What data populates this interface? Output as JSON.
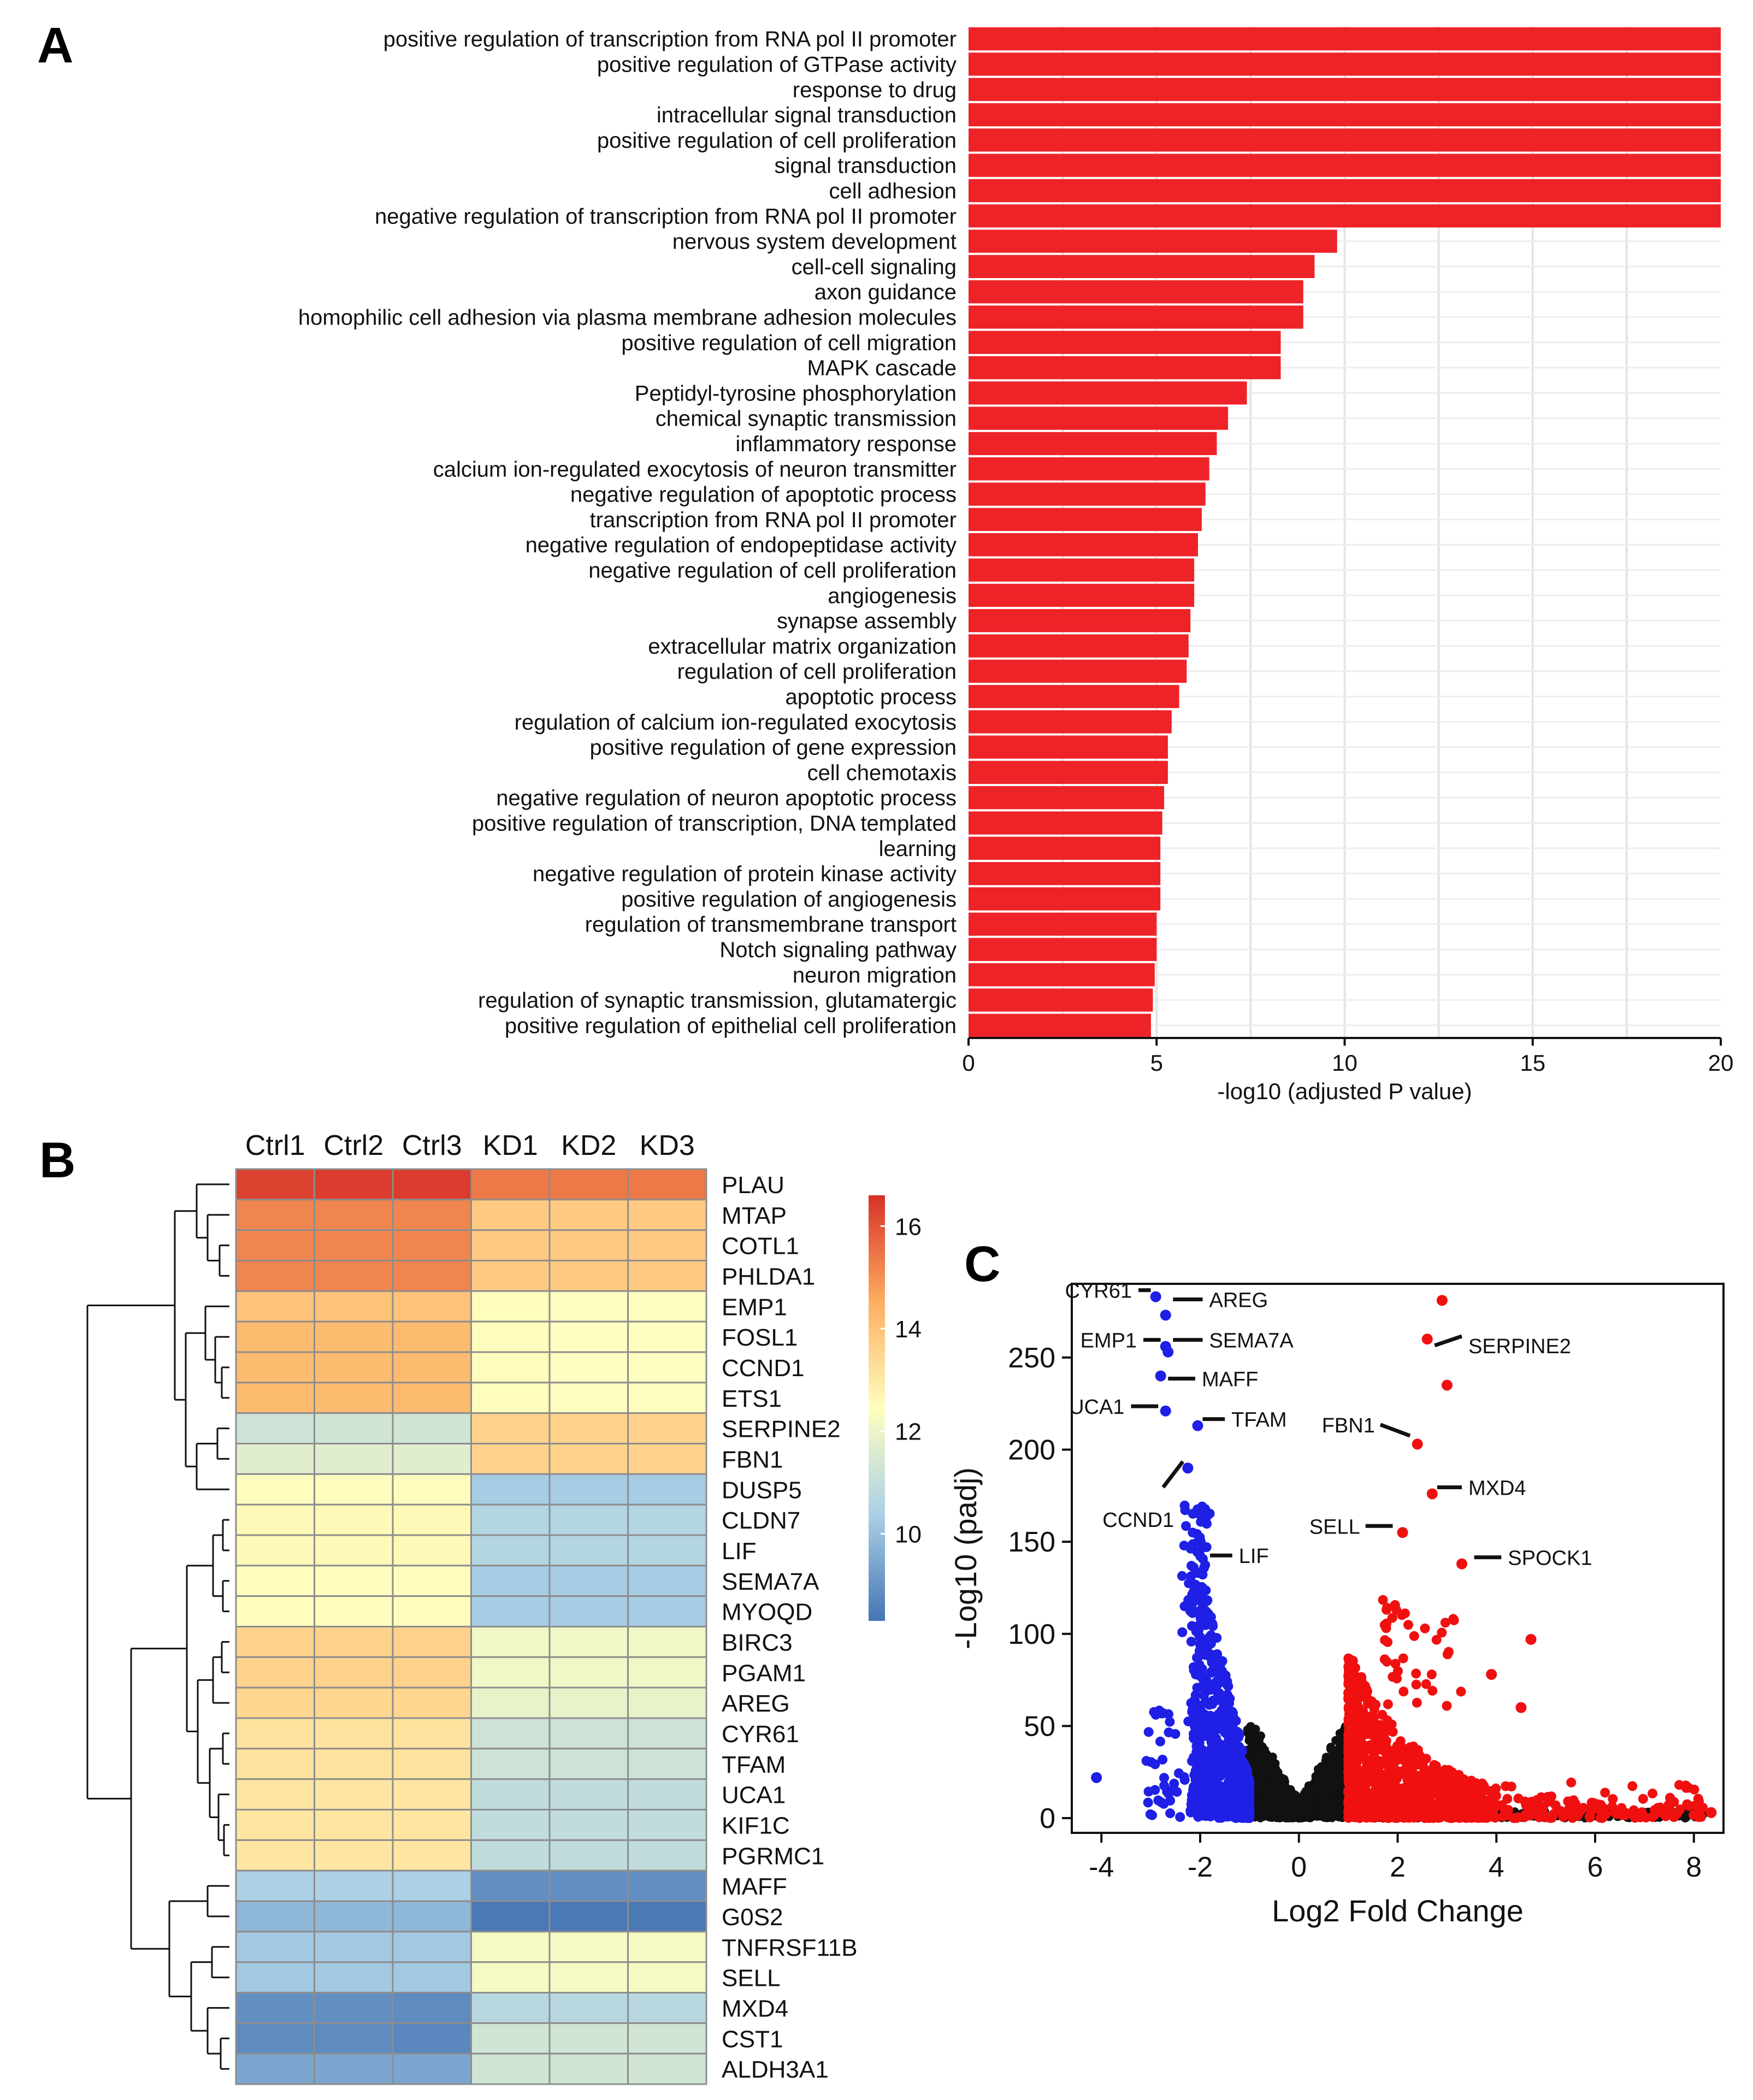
{
  "panel_labels": {
    "a": "A",
    "b": "B",
    "c": "C"
  },
  "chart_data": [
    {
      "panel": "A",
      "type": "bar",
      "orientation": "horizontal",
      "title": "",
      "xlabel": "-log10 (adjusted P value)",
      "ylabel": "",
      "xlim": [
        0,
        20
      ],
      "xticks": [
        0,
        5,
        10,
        15,
        20
      ],
      "grid": true,
      "bar_color": "#ee2328",
      "categories": [
        "positive regulation of transcription from RNA pol II promoter",
        "positive regulation of GTPase activity",
        "response to drug",
        "intracellular signal transduction",
        "positive regulation of cell proliferation",
        "signal transduction",
        "cell adhesion",
        "negative regulation of transcription from RNA pol II promoter",
        "nervous system development",
        "cell-cell signaling",
        "axon guidance",
        "homophilic cell adhesion via plasma membrane adhesion molecules",
        "positive regulation of cell migration",
        "MAPK cascade",
        "Peptidyl-tyrosine phosphorylation",
        "chemical synaptic transmission",
        "inflammatory response",
        "calcium ion-regulated exocytosis of neuron transmitter",
        "negative regulation of apoptotic process",
        "transcription from RNA pol II promoter",
        "negative regulation of endopeptidase activity",
        "negative regulation of cell proliferation",
        "angiogenesis",
        "synapse assembly",
        "extracellular matrix organization",
        "regulation of cell proliferation",
        "apoptotic process",
        "regulation of calcium ion-regulated exocytosis",
        "positive regulation of gene expression",
        "cell chemotaxis",
        "negative regulation of neuron apoptotic process",
        "positive regulation of transcription, DNA templated",
        "learning",
        "negative regulation of protein kinase activity",
        "positive regulation of angiogenesis",
        "regulation of transmembrane transport",
        "Notch signaling pathway",
        "neuron migration",
        "regulation of synaptic transmission, glutamatergic",
        "positive regulation of epithelial cell proliferation"
      ],
      "values": [
        20,
        20,
        20,
        20,
        20,
        20,
        20,
        20,
        9.8,
        9.2,
        8.9,
        8.9,
        8.3,
        8.3,
        7.4,
        6.9,
        6.6,
        6.4,
        6.3,
        6.2,
        6.1,
        6.0,
        6.0,
        5.9,
        5.85,
        5.8,
        5.6,
        5.4,
        5.3,
        5.3,
        5.2,
        5.15,
        5.1,
        5.1,
        5.1,
        5.0,
        5.0,
        4.95,
        4.9,
        4.85
      ]
    },
    {
      "panel": "B",
      "type": "heatmap",
      "columns": [
        "Ctrl1",
        "Ctrl2",
        "Ctrl3",
        "KD1",
        "KD2",
        "KD3"
      ],
      "rows": [
        "PLAU",
        "MTAP",
        "COTL1",
        "PHLDA1",
        "EMP1",
        "FOSL1",
        "CCND1",
        "ETS1",
        "SERPINE2",
        "FBN1",
        "DUSP5",
        "CLDN7",
        "LIF",
        "SEMA7A",
        "MYOQD",
        "BIRC3",
        "PGAM1",
        "AREG",
        "CYR61",
        "TFAM",
        "UCA1",
        "KIF1C",
        "PGRMC1",
        "MAFF",
        "G0S2",
        "TNFRSF11B",
        "SELL",
        "MXD4",
        "CST1",
        "ALDH3A1"
      ],
      "values": [
        [
          16.3,
          16.4,
          16.4,
          15.4,
          15.4,
          15.4
        ],
        [
          15.2,
          15.2,
          15.2,
          13.8,
          13.8,
          13.8
        ],
        [
          15.2,
          15.2,
          15.2,
          13.8,
          13.8,
          13.8
        ],
        [
          15.2,
          15.2,
          15.2,
          13.8,
          13.8,
          13.8
        ],
        [
          14.0,
          14.0,
          14.0,
          12.5,
          12.4,
          12.4
        ],
        [
          14.2,
          14.2,
          14.2,
          12.5,
          12.4,
          12.4
        ],
        [
          14.2,
          14.2,
          14.2,
          12.5,
          12.4,
          12.4
        ],
        [
          14.2,
          14.2,
          14.2,
          12.5,
          12.4,
          12.4
        ],
        [
          11.2,
          11.3,
          11.3,
          13.6,
          13.6,
          13.6
        ],
        [
          11.7,
          11.7,
          11.7,
          13.6,
          13.6,
          13.6
        ],
        [
          12.5,
          12.5,
          12.5,
          10.3,
          10.3,
          10.3
        ],
        [
          12.6,
          12.6,
          12.6,
          10.6,
          10.6,
          10.6
        ],
        [
          12.6,
          12.6,
          12.6,
          10.6,
          10.6,
          10.6
        ],
        [
          12.5,
          12.5,
          12.5,
          10.3,
          10.3,
          10.3
        ],
        [
          12.5,
          12.5,
          12.5,
          10.3,
          10.3,
          10.3
        ],
        [
          13.6,
          13.6,
          13.6,
          12.1,
          12.1,
          12.1
        ],
        [
          13.6,
          13.6,
          13.6,
          12.1,
          12.1,
          12.1
        ],
        [
          13.5,
          13.5,
          13.5,
          11.9,
          11.9,
          11.9
        ],
        [
          13.2,
          13.2,
          13.2,
          11.2,
          11.2,
          11.2
        ],
        [
          13.2,
          13.2,
          13.2,
          11.2,
          11.2,
          11.2
        ],
        [
          13.1,
          13.1,
          13.1,
          10.9,
          10.9,
          10.9
        ],
        [
          13.1,
          13.1,
          13.1,
          10.9,
          10.9,
          10.9
        ],
        [
          13.1,
          13.1,
          13.1,
          10.9,
          10.9,
          10.9
        ],
        [
          10.4,
          10.4,
          10.4,
          8.9,
          8.9,
          8.9
        ],
        [
          9.8,
          9.8,
          9.8,
          8.4,
          8.4,
          8.4
        ],
        [
          10.2,
          10.2,
          10.2,
          12.2,
          12.2,
          12.2
        ],
        [
          10.2,
          10.2,
          10.2,
          12.2,
          12.2,
          12.2
        ],
        [
          8.9,
          8.9,
          8.8,
          10.7,
          10.7,
          10.7
        ],
        [
          8.8,
          8.8,
          8.7,
          11.3,
          11.3,
          11.3
        ],
        [
          9.4,
          9.4,
          9.4,
          11.3,
          11.3,
          11.3
        ]
      ],
      "colorbar": {
        "min": 8.3,
        "max": 16.6,
        "ticks": [
          10,
          12,
          14,
          16
        ],
        "colors": [
          "#4575b4",
          "#abd0e6",
          "#ffffbf",
          "#fdae61",
          "#d73027"
        ]
      },
      "dendrogram": "hierarchical clustering of rows"
    },
    {
      "panel": "C",
      "type": "scatter",
      "subtype": "volcano",
      "xlabel": "Log2 Fold Change",
      "ylabel": "-Log10 (padj)",
      "xlim": [
        -4.6,
        8.6
      ],
      "ylim": [
        -8,
        290
      ],
      "xticks": [
        -4,
        -2,
        0,
        2,
        4,
        6,
        8
      ],
      "yticks": [
        0,
        50,
        100,
        150,
        200,
        250
      ],
      "colors": {
        "down": "#1f1fe6",
        "up": "#f01010",
        "ns": "#111111"
      },
      "labeled_genes": [
        {
          "gene": "CYR61",
          "x": -2.9,
          "y": 283
        },
        {
          "gene": "AREG",
          "x": -2.7,
          "y": 273
        },
        {
          "gene": "EMP1",
          "x": -2.7,
          "y": 256
        },
        {
          "gene": "SEMA7A",
          "x": -2.65,
          "y": 253
        },
        {
          "gene": "MAFF",
          "x": -2.8,
          "y": 240
        },
        {
          "gene": "UCA1",
          "x": -2.7,
          "y": 221
        },
        {
          "gene": "TFAM",
          "x": -2.05,
          "y": 213
        },
        {
          "gene": "CCND1",
          "x": -2.25,
          "y": 190
        },
        {
          "gene": "LIF",
          "x": -2.0,
          "y": 150
        },
        {
          "gene": "SERPINE2",
          "x": 2.6,
          "y": 260
        },
        {
          "gene": "FBN1",
          "x": 2.4,
          "y": 203
        },
        {
          "gene": "MXD4",
          "x": 2.7,
          "y": 176
        },
        {
          "gene": "SELL",
          "x": 2.1,
          "y": 155
        },
        {
          "gene": "SPOCK1",
          "x": 3.3,
          "y": 138
        }
      ],
      "extra_points": [
        {
          "x": 2.9,
          "y": 281
        },
        {
          "x": 3.0,
          "y": 235
        },
        {
          "x": -4.1,
          "y": 22
        },
        {
          "x": 4.7,
          "y": 97
        },
        {
          "x": 4.5,
          "y": 60
        },
        {
          "x": 3.9,
          "y": 78
        },
        {
          "x": 8.35,
          "y": 3
        }
      ]
    }
  ]
}
